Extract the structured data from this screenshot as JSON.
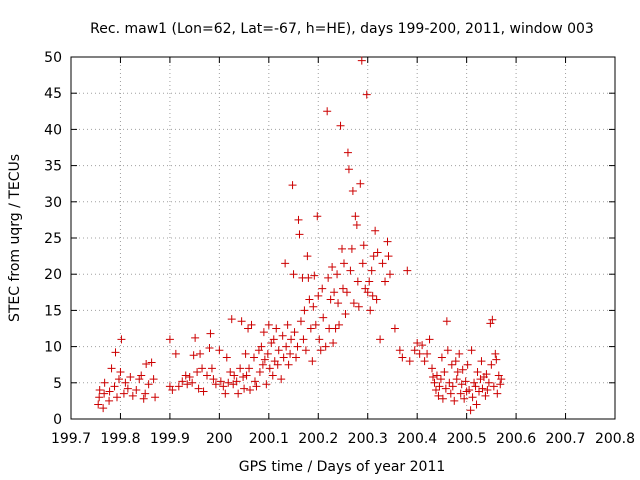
{
  "chart_data": {
    "type": "scatter",
    "title": "Rec. maw1 (Lon=62, Lat=-67, h=HE), days 199-200, 2011, window 003",
    "xlabel": "GPS time / Days of year 2011",
    "ylabel": "STEC from uqrg / TECUs",
    "xlim": [
      199.7,
      200.8
    ],
    "ylim": [
      0,
      50
    ],
    "xticks": [
      199.7,
      199.8,
      199.9,
      200,
      200.1,
      200.2,
      200.3,
      200.4,
      200.5,
      200.6,
      200.7,
      200.8
    ],
    "xtick_labels": [
      "199.7",
      "199.8",
      "199.9",
      "200",
      "200.1",
      "200.2",
      "200.3",
      "200.4",
      "200.5",
      "200.6",
      "200.7",
      "200.8"
    ],
    "yticks": [
      0,
      5,
      10,
      15,
      20,
      25,
      30,
      35,
      40,
      45,
      50
    ],
    "ytick_labels": [
      "0",
      "5",
      "10",
      "15",
      "20",
      "25",
      "30",
      "35",
      "40",
      "45",
      "50"
    ],
    "grid": true,
    "marker": "+",
    "color": "#cc0000",
    "series": [
      {
        "name": "STEC",
        "points": [
          [
            199.755,
            2.0
          ],
          [
            199.757,
            3.0
          ],
          [
            199.758,
            4.0
          ],
          [
            199.765,
            1.5
          ],
          [
            199.767,
            3.5
          ],
          [
            199.768,
            5.0
          ],
          [
            199.777,
            2.5
          ],
          [
            199.778,
            3.8
          ],
          [
            199.782,
            7.0
          ],
          [
            199.788,
            4.5
          ],
          [
            199.79,
            9.2
          ],
          [
            199.793,
            3.0
          ],
          [
            199.797,
            5.5
          ],
          [
            199.8,
            6.5
          ],
          [
            199.802,
            11.0
          ],
          [
            199.807,
            3.5
          ],
          [
            199.81,
            5.0
          ],
          [
            199.815,
            4.2
          ],
          [
            199.82,
            5.8
          ],
          [
            199.825,
            3.2
          ],
          [
            199.832,
            4.0
          ],
          [
            199.838,
            5.5
          ],
          [
            199.842,
            6.0
          ],
          [
            199.847,
            2.8
          ],
          [
            199.85,
            3.5
          ],
          [
            199.852,
            7.6
          ],
          [
            199.857,
            4.8
          ],
          [
            199.863,
            7.8
          ],
          [
            199.867,
            5.5
          ],
          [
            199.87,
            3.0
          ],
          [
            199.9,
            11.0
          ],
          [
            199.9,
            4.5
          ],
          [
            199.905,
            4.0
          ],
          [
            199.912,
            9.0
          ],
          [
            199.918,
            4.5
          ],
          [
            199.925,
            5.2
          ],
          [
            199.932,
            6.0
          ],
          [
            199.935,
            4.8
          ],
          [
            199.94,
            5.8
          ],
          [
            199.945,
            5.0
          ],
          [
            199.948,
            8.8
          ],
          [
            199.951,
            11.2
          ],
          [
            199.955,
            6.5
          ],
          [
            199.958,
            4.2
          ],
          [
            199.961,
            9.0
          ],
          [
            199.965,
            7.0
          ],
          [
            199.968,
            3.8
          ],
          [
            199.975,
            6.0
          ],
          [
            199.98,
            9.8
          ],
          [
            199.982,
            11.8
          ],
          [
            199.985,
            7.0
          ],
          [
            199.988,
            5.5
          ],
          [
            199.993,
            4.8
          ],
          [
            200.0,
            9.5
          ],
          [
            200.003,
            5.2
          ],
          [
            200.008,
            4.5
          ],
          [
            200.012,
            3.5
          ],
          [
            200.015,
            8.5
          ],
          [
            200.018,
            5.0
          ],
          [
            200.022,
            6.5
          ],
          [
            200.025,
            13.8
          ],
          [
            200.028,
            4.8
          ],
          [
            200.03,
            6.0
          ],
          [
            200.035,
            5.2
          ],
          [
            200.038,
            3.5
          ],
          [
            200.042,
            7.0
          ],
          [
            200.045,
            13.5
          ],
          [
            200.048,
            5.8
          ],
          [
            200.05,
            4.2
          ],
          [
            200.053,
            9.0
          ],
          [
            200.055,
            6.0
          ],
          [
            200.058,
            12.5
          ],
          [
            200.06,
            7.0
          ],
          [
            200.062,
            4.0
          ],
          [
            200.065,
            13.0
          ],
          [
            200.07,
            8.5
          ],
          [
            200.072,
            5.2
          ],
          [
            200.075,
            4.5
          ],
          [
            200.08,
            9.5
          ],
          [
            200.082,
            6.5
          ],
          [
            200.085,
            10.0
          ],
          [
            200.088,
            7.5
          ],
          [
            200.09,
            12.0
          ],
          [
            200.092,
            8.2
          ],
          [
            200.095,
            4.8
          ],
          [
            200.098,
            9.0
          ],
          [
            200.1,
            13.0
          ],
          [
            200.102,
            7.0
          ],
          [
            200.105,
            10.5
          ],
          [
            200.108,
            6.0
          ],
          [
            200.11,
            11.0
          ],
          [
            200.112,
            8.0
          ],
          [
            200.115,
            12.5
          ],
          [
            200.118,
            7.5
          ],
          [
            200.12,
            9.5
          ],
          [
            200.125,
            5.5
          ],
          [
            200.128,
            11.5
          ],
          [
            200.13,
            8.5
          ],
          [
            200.133,
            21.5
          ],
          [
            200.135,
            10.0
          ],
          [
            200.138,
            13.0
          ],
          [
            200.14,
            7.5
          ],
          [
            200.143,
            9.0
          ],
          [
            200.145,
            11.0
          ],
          [
            200.148,
            32.3
          ],
          [
            200.15,
            20.0
          ],
          [
            200.152,
            12.0
          ],
          [
            200.155,
            8.5
          ],
          [
            200.158,
            10.0
          ],
          [
            200.16,
            27.5
          ],
          [
            200.162,
            25.5
          ],
          [
            200.165,
            13.5
          ],
          [
            200.168,
            19.5
          ],
          [
            200.17,
            11.0
          ],
          [
            200.172,
            15.0
          ],
          [
            200.175,
            9.5
          ],
          [
            200.178,
            22.5
          ],
          [
            200.18,
            19.5
          ],
          [
            200.182,
            16.5
          ],
          [
            200.185,
            12.5
          ],
          [
            200.188,
            8.0
          ],
          [
            200.19,
            15.5
          ],
          [
            200.192,
            19.8
          ],
          [
            200.195,
            13.0
          ],
          [
            200.198,
            28.0
          ],
          [
            200.2,
            17.0
          ],
          [
            200.202,
            11.0
          ],
          [
            200.205,
            9.5
          ],
          [
            200.208,
            18.0
          ],
          [
            200.21,
            14.0
          ],
          [
            200.215,
            10.0
          ],
          [
            200.218,
            42.5
          ],
          [
            200.22,
            19.5
          ],
          [
            200.222,
            12.5
          ],
          [
            200.225,
            16.5
          ],
          [
            200.228,
            21.0
          ],
          [
            200.23,
            10.5
          ],
          [
            200.232,
            17.5
          ],
          [
            200.235,
            12.5
          ],
          [
            200.238,
            20.0
          ],
          [
            200.24,
            16.0
          ],
          [
            200.242,
            13.0
          ],
          [
            200.245,
            40.5
          ],
          [
            200.248,
            23.5
          ],
          [
            200.25,
            18.0
          ],
          [
            200.252,
            21.5
          ],
          [
            200.255,
            14.5
          ],
          [
            200.258,
            17.5
          ],
          [
            200.26,
            36.8
          ],
          [
            200.262,
            34.5
          ],
          [
            200.265,
            20.5
          ],
          [
            200.268,
            23.5
          ],
          [
            200.27,
            31.5
          ],
          [
            200.272,
            16.0
          ],
          [
            200.275,
            28.0
          ],
          [
            200.278,
            26.8
          ],
          [
            200.28,
            19.0
          ],
          [
            200.282,
            15.5
          ],
          [
            200.285,
            32.5
          ],
          [
            200.288,
            49.5
          ],
          [
            200.29,
            21.5
          ],
          [
            200.292,
            24.0
          ],
          [
            200.295,
            18.0
          ],
          [
            200.298,
            44.8
          ],
          [
            200.3,
            17.5
          ],
          [
            200.303,
            19.0
          ],
          [
            200.305,
            15.0
          ],
          [
            200.308,
            20.5
          ],
          [
            200.31,
            17.0
          ],
          [
            200.312,
            22.5
          ],
          [
            200.315,
            26.0
          ],
          [
            200.318,
            16.5
          ],
          [
            200.32,
            23.0
          ],
          [
            200.325,
            11.0
          ],
          [
            200.33,
            21.5
          ],
          [
            200.335,
            19.0
          ],
          [
            200.34,
            24.5
          ],
          [
            200.342,
            22.5
          ],
          [
            200.345,
            20.0
          ],
          [
            200.355,
            12.5
          ],
          [
            200.365,
            9.5
          ],
          [
            200.37,
            8.5
          ],
          [
            200.38,
            20.5
          ],
          [
            200.385,
            8.0
          ],
          [
            200.395,
            9.5
          ],
          [
            200.4,
            10.5
          ],
          [
            200.405,
            9.0
          ],
          [
            200.41,
            10.2
          ],
          [
            200.415,
            8.0
          ],
          [
            200.42,
            9.0
          ],
          [
            200.425,
            11.0
          ],
          [
            200.43,
            7.0
          ],
          [
            200.432,
            5.8
          ],
          [
            200.435,
            5.0
          ],
          [
            200.438,
            4.0
          ],
          [
            200.44,
            6.0
          ],
          [
            200.443,
            3.2
          ],
          [
            200.445,
            4.5
          ],
          [
            200.448,
            5.5
          ],
          [
            200.45,
            8.5
          ],
          [
            200.452,
            2.8
          ],
          [
            200.455,
            6.5
          ],
          [
            200.458,
            4.2
          ],
          [
            200.46,
            13.5
          ],
          [
            200.462,
            9.5
          ],
          [
            200.465,
            5.0
          ],
          [
            200.468,
            3.5
          ],
          [
            200.47,
            7.5
          ],
          [
            200.472,
            4.5
          ],
          [
            200.475,
            2.5
          ],
          [
            200.478,
            8.0
          ],
          [
            200.48,
            5.5
          ],
          [
            200.482,
            6.5
          ],
          [
            200.485,
            9.0
          ],
          [
            200.488,
            3.5
          ],
          [
            200.49,
            4.8
          ],
          [
            200.492,
            6.8
          ],
          [
            200.495,
            2.8
          ],
          [
            200.498,
            5.2
          ],
          [
            200.5,
            3.8
          ],
          [
            200.502,
            7.5
          ],
          [
            200.505,
            4.0
          ],
          [
            200.508,
            1.2
          ],
          [
            200.51,
            9.5
          ],
          [
            200.512,
            3.0
          ],
          [
            200.515,
            5.0
          ],
          [
            200.518,
            4.5
          ],
          [
            200.52,
            2.0
          ],
          [
            200.522,
            6.5
          ],
          [
            200.525,
            3.8
          ],
          [
            200.528,
            5.5
          ],
          [
            200.53,
            8.0
          ],
          [
            200.532,
            4.2
          ],
          [
            200.535,
            5.8
          ],
          [
            200.538,
            3.2
          ],
          [
            200.54,
            6.2
          ],
          [
            200.542,
            4.0
          ],
          [
            200.545,
            5.0
          ],
          [
            200.548,
            13.2
          ],
          [
            200.55,
            7.5
          ],
          [
            200.552,
            13.7
          ],
          [
            200.555,
            4.5
          ],
          [
            200.558,
            9.0
          ],
          [
            200.56,
            8.2
          ],
          [
            200.562,
            3.5
          ],
          [
            200.565,
            6.0
          ],
          [
            200.568,
            4.8
          ],
          [
            200.57,
            5.5
          ]
        ]
      }
    ]
  }
}
